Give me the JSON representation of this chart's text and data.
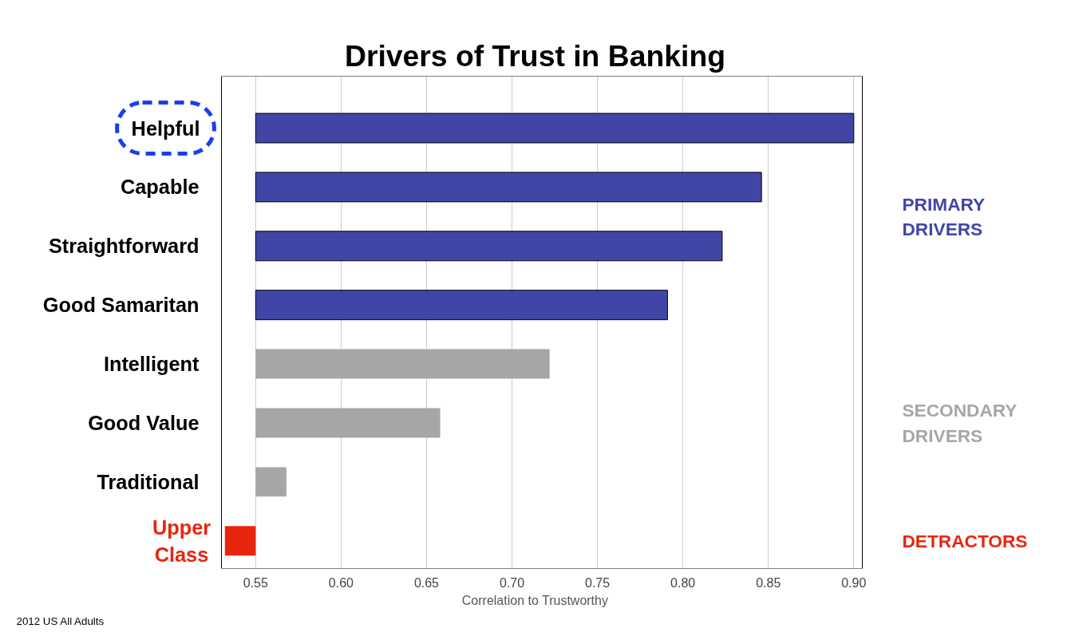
{
  "chart_data": {
    "type": "bar",
    "orientation": "horizontal",
    "title": "Drivers of Trust in Banking",
    "xlabel": "Correlation to Trustworthy",
    "categories": [
      "Helpful",
      "Capable",
      "Straightforward",
      "Good Samaritan",
      "Intelligent",
      "Good Value",
      "Traditional",
      "Upper Class"
    ],
    "base": [
      0.55,
      0.55,
      0.55,
      0.55,
      0.55,
      0.55,
      0.55,
      0.55
    ],
    "values": [
      0.35,
      0.296,
      0.273,
      0.241,
      0.172,
      0.108,
      0.018,
      -0.018
    ],
    "colors": [
      "#4146a6",
      "#4146a6",
      "#4146a6",
      "#4146a6",
      "#a6a6a6",
      "#a6a6a6",
      "#a6a6a6",
      "#e8260e"
    ],
    "xlim": [
      0.53,
      0.905
    ],
    "xticks": [
      {
        "value": 0.55,
        "label": "0.55"
      },
      {
        "value": 0.6,
        "label": "0.60"
      },
      {
        "value": 0.65,
        "label": "0.65"
      },
      {
        "value": 0.7,
        "label": "0.70"
      },
      {
        "value": 0.75,
        "label": "0.75"
      },
      {
        "value": 0.8,
        "label": "0.80"
      },
      {
        "value": 0.85,
        "label": "0.85"
      },
      {
        "value": 0.9,
        "label": "0.90"
      }
    ],
    "grid": "x",
    "annotations": [
      "PRIMARY DRIVERS",
      "SECONDARY DRIVERS",
      "DETRACTORS",
      "2012 US All Adults"
    ]
  }
}
